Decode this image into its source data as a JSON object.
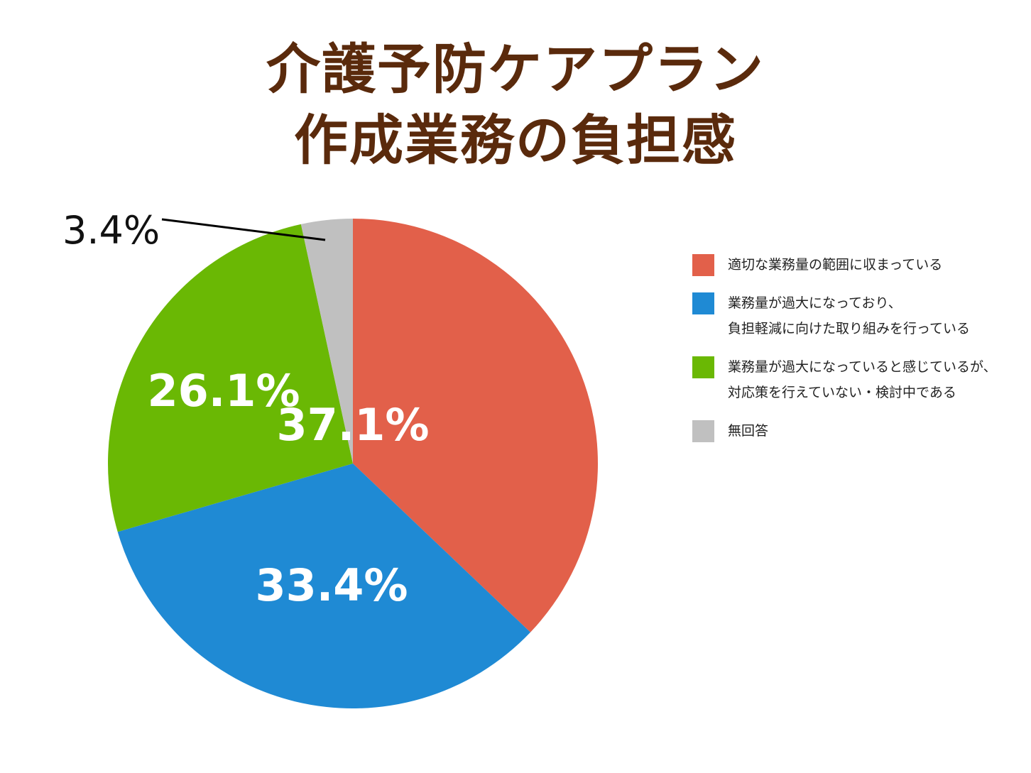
{
  "title": {
    "line1": "介護予防ケアプラン",
    "line2": "作成業務の負担感"
  },
  "legend": [
    {
      "lines": [
        "適切な業務量の範囲に収まっている"
      ],
      "color": "#e2604a"
    },
    {
      "lines": [
        "業務量が過大になっており、",
        "負担軽減に向けた取り組みを行っている"
      ],
      "color": "#1f8ad4"
    },
    {
      "lines": [
        "業務量が過大になっていると感じているが、",
        "対応策を行えていない・検討中である"
      ],
      "color": "#6ab804"
    },
    {
      "lines": [
        "無回答"
      ],
      "color": "#c0c0c0"
    }
  ],
  "labels": {
    "slice0": "37.1%",
    "slice1": "33.4%",
    "slice2": "26.1%",
    "slice3": "3.4%"
  },
  "chart_data": {
    "type": "pie",
    "title": "介護予防ケアプラン作成業務の負担感",
    "categories": [
      "適切な業務量の範囲に収まっている",
      "業務量が過大になっており、負担軽減に向けた取り組みを行っている",
      "業務量が過大になっていると感じているが、対応策を行えていない・検討中である",
      "無回答"
    ],
    "values": [
      37.1,
      33.4,
      26.1,
      3.4
    ],
    "unit": "%",
    "colors": [
      "#e2604a",
      "#1f8ad4",
      "#6ab804",
      "#c0c0c0"
    ],
    "start_angle": "12 o'clock",
    "direction": "clockwise",
    "legend_position": "right"
  }
}
